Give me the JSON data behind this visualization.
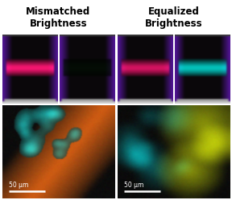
{
  "title_left": "Mismatched\nBrightness",
  "title_right": "Equalized\nBrightness",
  "title_fontsize": 8.5,
  "title_fontweight": "bold",
  "bg_color": "#ffffff",
  "scale_bar_text": "50 μm",
  "fig_width": 2.88,
  "fig_height": 2.49,
  "dpi": 100
}
